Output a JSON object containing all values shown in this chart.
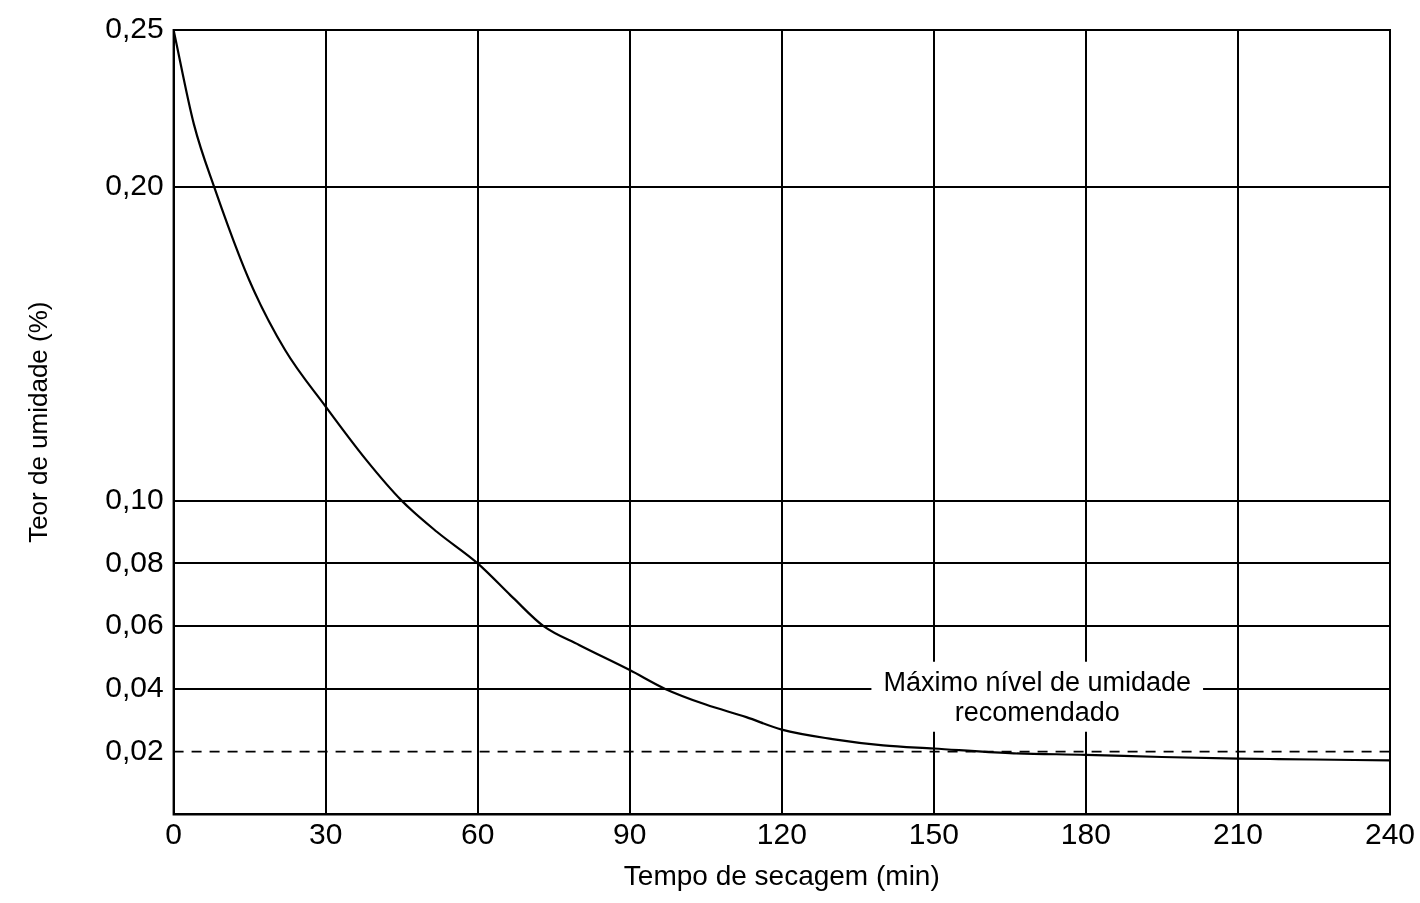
{
  "chart_data": {
    "type": "line",
    "xlabel": "Tempo de secagem (min)",
    "ylabel": "Teor de umidade (%)",
    "x": [
      0,
      4,
      8,
      15,
      22,
      30,
      38,
      45,
      52,
      60,
      67,
      73,
      80,
      90,
      97,
      105,
      113,
      120,
      130,
      140,
      150,
      165,
      180,
      195,
      210,
      225,
      240
    ],
    "series": [
      {
        "color": "#000000",
        "values": [
          0.25,
          0.22,
          0.2,
          0.17,
          0.148,
          0.13,
          0.113,
          0.1,
          0.09,
          0.08,
          0.069,
          0.06,
          0.054,
          0.046,
          0.04,
          0.035,
          0.031,
          0.027,
          0.024,
          0.022,
          0.021,
          0.0195,
          0.019,
          0.0183,
          0.0178,
          0.0175,
          0.0172
        ]
      }
    ],
    "xlim": [
      0,
      240
    ],
    "xticks": [
      0,
      30,
      60,
      90,
      120,
      150,
      180,
      210,
      240
    ],
    "ylim": [
      0,
      0.25
    ],
    "yticks": [
      {
        "value": 0.02,
        "label": "0,02"
      },
      {
        "value": 0.04,
        "label": "0,04"
      },
      {
        "value": 0.06,
        "label": "0,06"
      },
      {
        "value": 0.08,
        "label": "0,08"
      },
      {
        "value": 0.1,
        "label": "0,10"
      },
      {
        "value": 0.2,
        "label": "0,20"
      },
      {
        "value": 0.25,
        "label": "0,25"
      }
    ],
    "grid": true,
    "marker": "none",
    "line_style": "solid",
    "ref_lines": [
      {
        "axis": "y",
        "value": 0.02,
        "label": "Máximo nível de umidade recomendado",
        "line_style": "dashed",
        "color": "#000000"
      }
    ]
  }
}
